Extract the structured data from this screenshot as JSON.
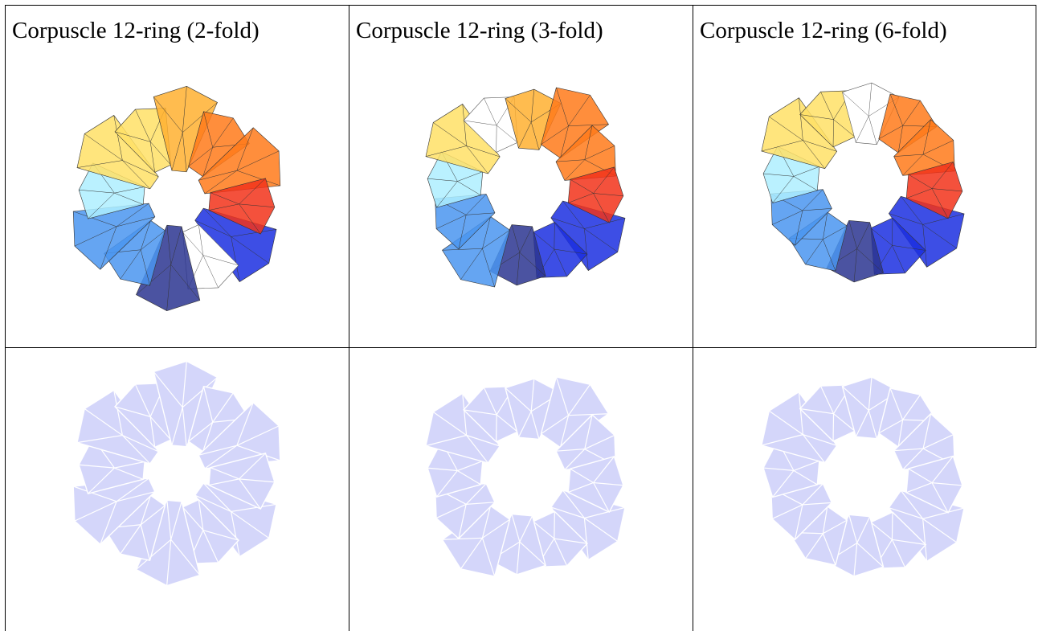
{
  "table": {
    "captions": [
      "Corpuscle 12-ring (2-fold)",
      "Corpuscle 12-ring (3-fold)",
      "Corpuscle 12-ring (6-fold)"
    ]
  },
  "figures": [
    {
      "type": "shaded-ring",
      "symmetry": 2,
      "palette": [
        "#1b2fe0",
        "#2b3590",
        "#4a95f0",
        "#aeefff",
        "#ffe066",
        "#ffb030",
        "#ff7a1a",
        "#f2321a"
      ]
    },
    {
      "type": "shaded-ring",
      "symmetry": 3,
      "palette": [
        "#1b2fe0",
        "#2b3590",
        "#4a95f0",
        "#aeefff",
        "#ffe066",
        "#ffb030",
        "#ff7a1a",
        "#f2321a"
      ]
    },
    {
      "type": "shaded-ring",
      "symmetry": 6,
      "palette": [
        "#1b2fe0",
        "#2b3590",
        "#4a95f0",
        "#aeefff",
        "#ffe066",
        "#ffb030",
        "#ff7a1a",
        "#f2321a"
      ]
    },
    {
      "type": "flat-ring",
      "symmetry": 2,
      "fill": "#d4d6fa"
    },
    {
      "type": "flat-ring",
      "symmetry": 3,
      "fill": "#d4d6fa"
    },
    {
      "type": "flat-ring",
      "symmetry": 6,
      "fill": "#d4d6fa"
    }
  ]
}
